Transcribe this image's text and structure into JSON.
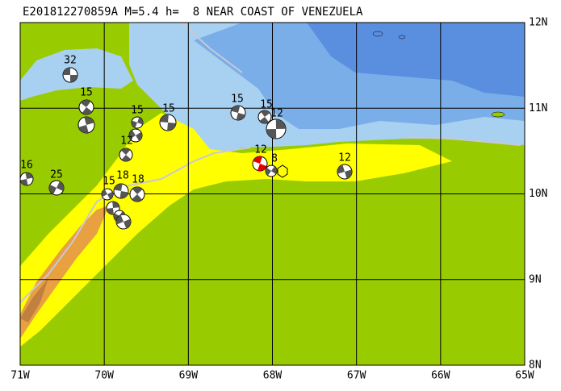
{
  "header": {
    "title": "E201812270859A M=5.4 h=  8 NEAR COAST OF VENEZUELA"
  },
  "map": {
    "lon_labels": [
      "71W",
      "70W",
      "69W",
      "68W",
      "67W",
      "66W",
      "65W"
    ],
    "lat_labels": [
      "12N",
      "11N",
      "10N",
      "9N",
      "8N"
    ],
    "events": [
      {
        "label": "32"
      },
      {
        "label": "15"
      },
      {
        "label": "15"
      },
      {
        "label": "15"
      },
      {
        "label": "12"
      },
      {
        "label": "16"
      },
      {
        "label": "25"
      },
      {
        "label": "15"
      },
      {
        "label": "18"
      },
      {
        "label": "18"
      },
      {
        "label": "15"
      },
      {
        "label": "15"
      },
      {
        "label": "12"
      },
      {
        "label": "12"
      },
      {
        "label": "8"
      },
      {
        "label": "12"
      }
    ]
  }
}
